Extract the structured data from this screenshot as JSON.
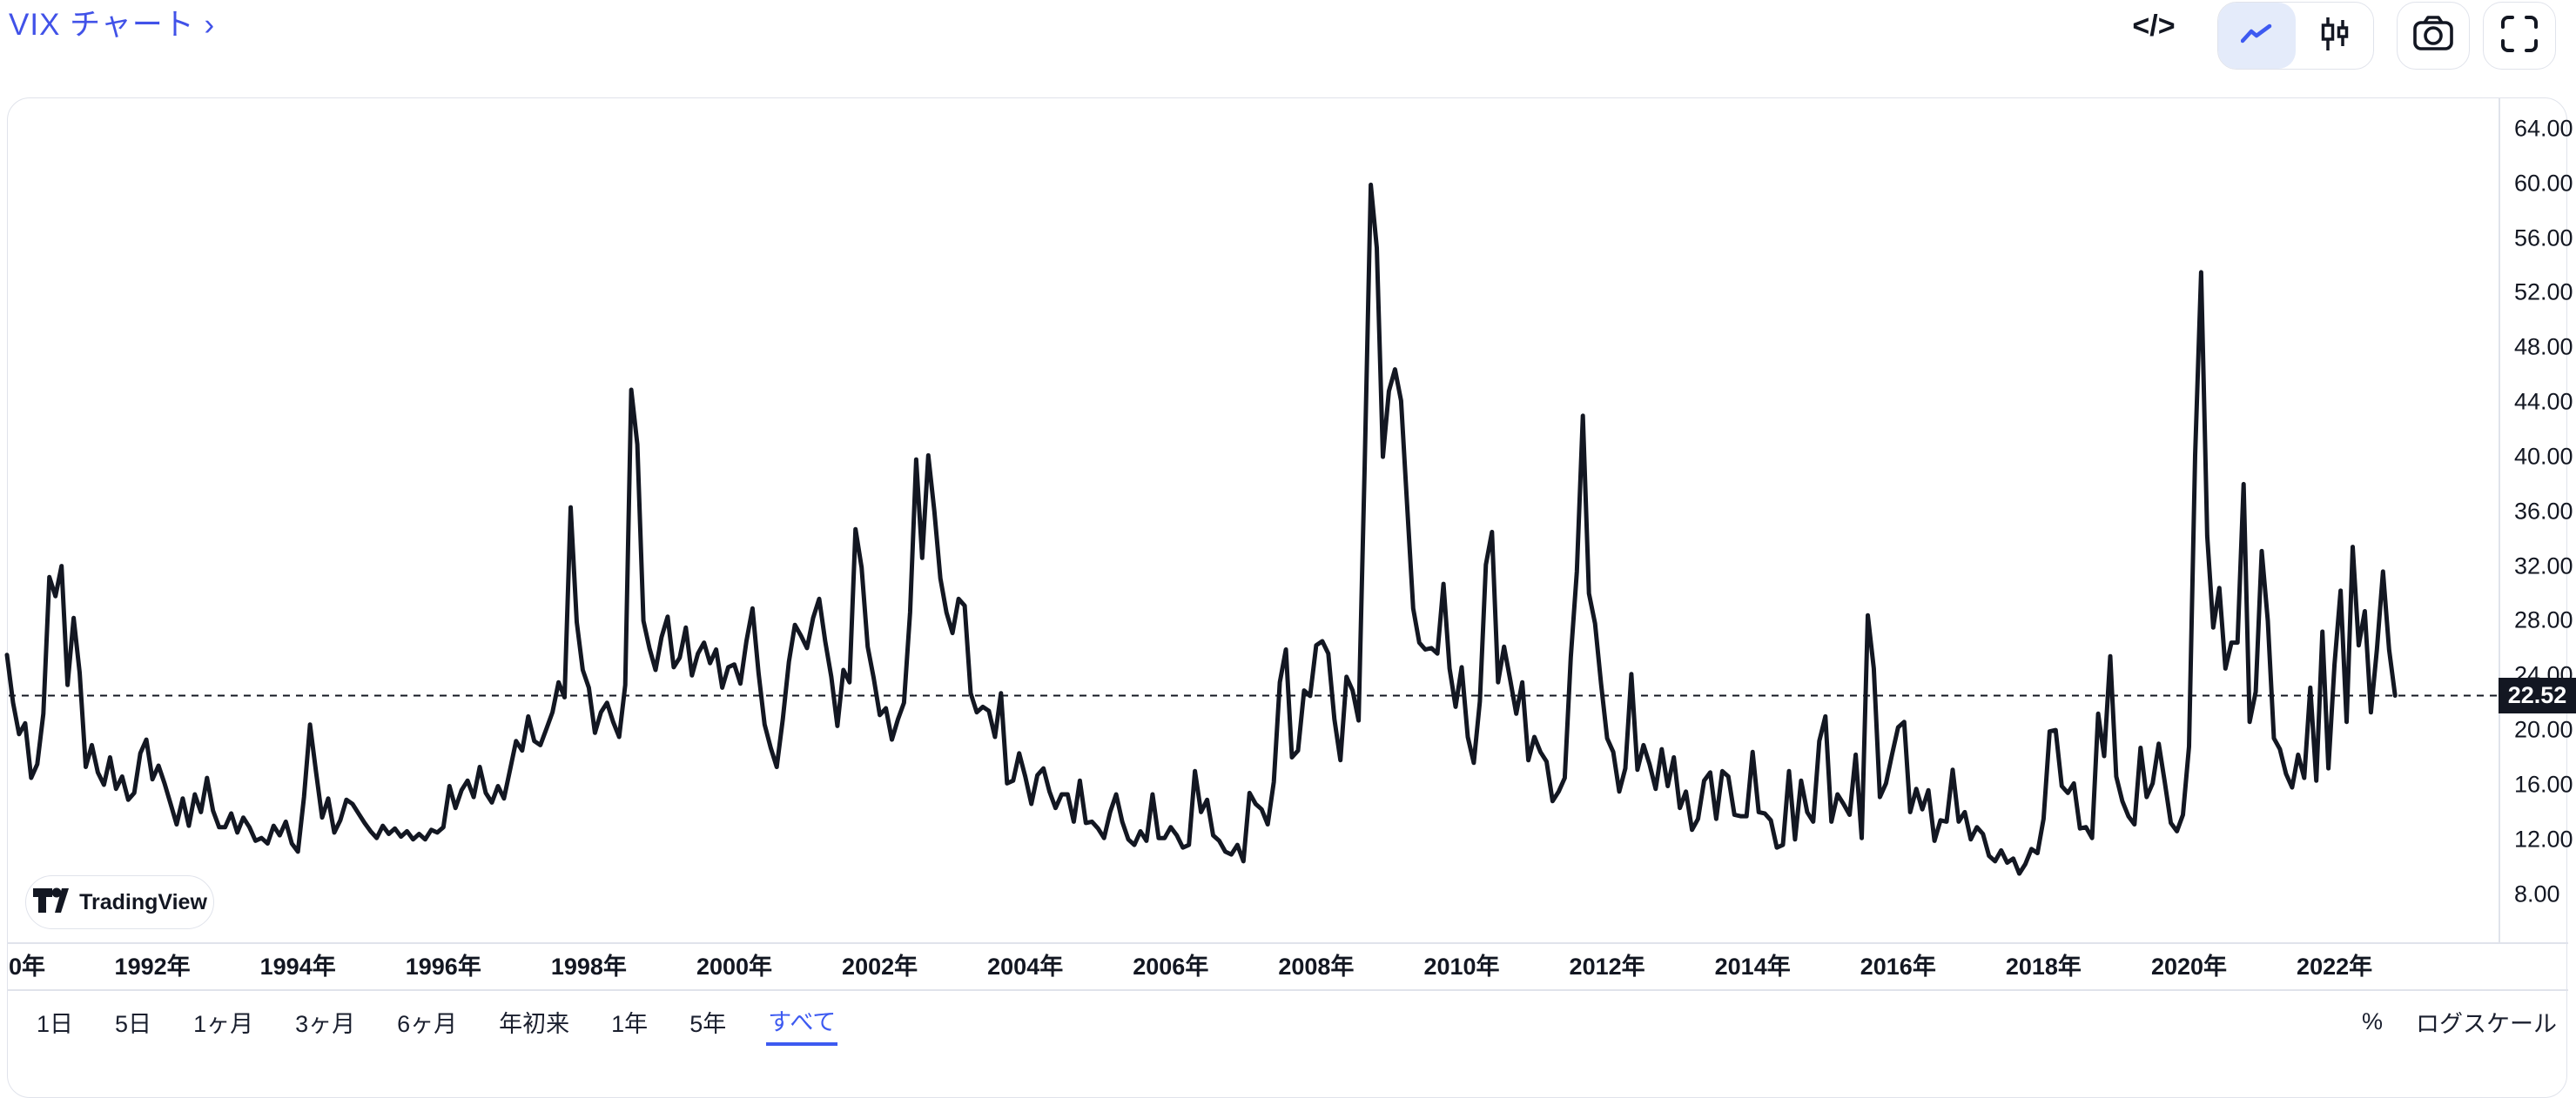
{
  "header": {
    "title": "VIX チャート ›"
  },
  "top_toolbar": {
    "embed_glyph": "</>",
    "active_chart_type": "line",
    "icons": [
      "embed-code-icon",
      "line-chart-icon",
      "candlestick-icon",
      "camera-icon",
      "fullscreen-icon"
    ]
  },
  "chart_data": {
    "type": "line",
    "title": "VIX チャート",
    "series_name": "VIX",
    "x_interval": "monthly",
    "x_start_year": 1990,
    "x_range": [
      1990,
      2022.92
    ],
    "ylim": [
      4.5,
      66.2
    ],
    "grid": false,
    "legend": "none",
    "line_color": "#131722",
    "last_price": 22.52,
    "last_price_label": "22.52",
    "y_ticks": [
      {
        "value": 64,
        "label": "64.00"
      },
      {
        "value": 60,
        "label": "60.00"
      },
      {
        "value": 56,
        "label": "56.00"
      },
      {
        "value": 52,
        "label": "52.00"
      },
      {
        "value": 48,
        "label": "48.00"
      },
      {
        "value": 44,
        "label": "44.00"
      },
      {
        "value": 40,
        "label": "40.00"
      },
      {
        "value": 36,
        "label": "36.00"
      },
      {
        "value": 32,
        "label": "32.00"
      },
      {
        "value": 28,
        "label": "28.00"
      },
      {
        "value": 24,
        "label": "24.00"
      },
      {
        "value": 20,
        "label": "20.00"
      },
      {
        "value": 16,
        "label": "16.00"
      },
      {
        "value": 12,
        "label": "12.00"
      },
      {
        "value": 8,
        "label": "8.00"
      }
    ],
    "x_ticks": [
      {
        "year": 1990,
        "label": "0年",
        "clipped": true
      },
      {
        "year": 1992,
        "label": "1992年"
      },
      {
        "year": 1994,
        "label": "1994年"
      },
      {
        "year": 1996,
        "label": "1996年"
      },
      {
        "year": 1998,
        "label": "1998年"
      },
      {
        "year": 2000,
        "label": "2000年"
      },
      {
        "year": 2002,
        "label": "2002年"
      },
      {
        "year": 2004,
        "label": "2004年"
      },
      {
        "year": 2006,
        "label": "2006年"
      },
      {
        "year": 2008,
        "label": "2008年"
      },
      {
        "year": 2010,
        "label": "2010年"
      },
      {
        "year": 2012,
        "label": "2012年"
      },
      {
        "year": 2014,
        "label": "2014年"
      },
      {
        "year": 2016,
        "label": "2016年"
      },
      {
        "year": 2018,
        "label": "2018年"
      },
      {
        "year": 2020,
        "label": "2020年"
      },
      {
        "year": 2022,
        "label": "2022年"
      }
    ],
    "values": [
      25.5,
      22.0,
      19.7,
      20.5,
      16.5,
      17.5,
      21.2,
      31.2,
      29.8,
      32.0,
      23.3,
      28.2,
      24.2,
      17.3,
      18.9,
      16.9,
      16.0,
      18.0,
      15.7,
      16.6,
      14.9,
      15.4,
      18.3,
      19.3,
      16.4,
      17.4,
      16.1,
      14.6,
      13.1,
      15.0,
      13.0,
      15.3,
      14.0,
      16.5,
      14.1,
      12.9,
      12.9,
      13.9,
      12.5,
      13.6,
      12.9,
      11.9,
      12.1,
      11.7,
      13.0,
      12.3,
      13.3,
      11.7,
      11.1,
      15.1,
      20.4,
      16.9,
      13.6,
      15.0,
      12.5,
      13.4,
      14.9,
      14.6,
      13.9,
      13.2,
      12.6,
      12.1,
      13.0,
      12.4,
      12.8,
      12.2,
      12.6,
      12.0,
      12.4,
      12.0,
      12.7,
      12.5,
      12.9,
      15.9,
      14.3,
      15.6,
      16.3,
      15.1,
      17.3,
      15.4,
      14.7,
      15.9,
      15.0,
      17.1,
      19.2,
      18.5,
      21.0,
      19.2,
      18.9,
      20.1,
      21.3,
      23.5,
      22.4,
      36.3,
      27.9,
      24.4,
      23.1,
      19.8,
      21.3,
      22.0,
      20.6,
      19.5,
      23.3,
      44.9,
      40.9,
      28.0,
      26.0,
      24.4,
      26.8,
      28.3,
      24.6,
      25.3,
      27.5,
      24.0,
      25.6,
      26.4,
      24.9,
      25.9,
      23.1,
      24.6,
      24.8,
      23.4,
      26.5,
      28.9,
      24.2,
      20.4,
      18.7,
      17.3,
      20.8,
      25.0,
      27.7,
      26.9,
      26.0,
      28.2,
      29.6,
      26.5,
      23.9,
      20.3,
      24.4,
      23.5,
      34.7,
      31.9,
      26.1,
      23.8,
      21.1,
      21.6,
      19.3,
      20.8,
      22.0,
      28.6,
      39.8,
      32.6,
      40.1,
      36.0,
      31.1,
      28.6,
      27.1,
      29.6,
      29.1,
      22.7,
      21.3,
      21.7,
      21.4,
      19.5,
      22.7,
      16.1,
      16.3,
      18.3,
      16.6,
      14.6,
      16.7,
      17.2,
      15.5,
      14.3,
      15.3,
      15.3,
      13.3,
      16.3,
      13.2,
      13.3,
      12.8,
      12.1,
      14.0,
      15.3,
      13.3,
      12.0,
      11.6,
      12.6,
      11.9,
      15.3,
      12.1,
      12.1,
      12.9,
      12.3,
      11.4,
      11.6,
      17.0,
      14.0,
      14.9,
      12.3,
      11.9,
      11.1,
      10.9,
      11.6,
      10.4,
      15.4,
      14.6,
      14.2,
      13.1,
      16.2,
      23.5,
      25.9,
      18.0,
      18.5,
      22.9,
      22.5,
      26.2,
      26.5,
      25.6,
      20.8,
      17.8,
      23.9,
      22.9,
      20.7,
      39.4,
      59.9,
      55.3,
      40.0,
      44.8,
      46.4,
      44.1,
      36.5,
      28.9,
      26.4,
      25.9,
      26.0,
      25.6,
      30.7,
      24.5,
      21.7,
      24.6,
      19.5,
      17.6,
      22.1,
      32.1,
      34.5,
      23.5,
      26.1,
      23.7,
      21.2,
      23.5,
      17.8,
      19.5,
      18.4,
      17.7,
      14.8,
      15.5,
      16.5,
      25.3,
      31.6,
      43.0,
      30.0,
      27.8,
      23.4,
      19.4,
      18.4,
      15.5,
      17.2,
      24.1,
      17.1,
      18.9,
      17.5,
      15.7,
      18.6,
      15.9,
      18.0,
      14.3,
      15.5,
      12.7,
      13.5,
      16.3,
      16.9,
      13.5,
      17.0,
      16.6,
      13.8,
      13.7,
      13.7,
      18.4,
      14.0,
      13.9,
      13.4,
      11.4,
      11.6,
      17.0,
      12.0,
      16.3,
      14.0,
      13.3,
      19.2,
      21.0,
      13.3,
      15.3,
      14.6,
      13.8,
      18.2,
      12.1,
      28.4,
      24.5,
      15.1,
      16.1,
      18.2,
      20.2,
      20.6,
      14.0,
      15.7,
      14.2,
      15.6,
      11.9,
      13.4,
      13.3,
      17.1,
      13.3,
      14.0,
      12.0,
      12.9,
      12.4,
      10.8,
      10.4,
      11.2,
      10.3,
      10.6,
      9.5,
      10.2,
      11.3,
      11.0,
      13.5,
      19.9,
      20.0,
      15.9,
      15.4,
      16.1,
      12.8,
      12.9,
      12.1,
      21.2,
      18.1,
      25.4,
      16.6,
      14.8,
      13.7,
      13.1,
      18.7,
      15.1,
      16.1,
      19.0,
      16.2,
      13.2,
      12.6,
      13.8,
      18.8,
      40.1,
      53.5,
      34.2,
      27.5,
      30.4,
      24.5,
      26.4,
      26.4,
      38.0,
      20.6,
      22.8,
      33.1,
      28.0,
      19.4,
      18.6,
      16.8,
      15.8,
      18.2,
      16.5,
      23.1,
      16.3,
      27.2,
      17.2,
      24.8,
      30.2,
      20.6,
      33.4,
      26.2,
      28.7,
      21.3,
      25.9,
      31.6,
      25.9,
      22.52
    ]
  },
  "attribution": {
    "label": "TradingView"
  },
  "range_toolbar": {
    "items": [
      "1日",
      "5日",
      "1ヶ月",
      "3ヶ月",
      "6ヶ月",
      "年初来",
      "1年",
      "5年",
      "すべて"
    ],
    "active": "すべて",
    "active_index": 8,
    "percent_label": "%",
    "log_label": "ログスケール"
  },
  "colors": {
    "title_blue": "#4152E8",
    "accent_blue": "#3D5AF1",
    "active_icon_bg": "#E4EBFA",
    "line": "#131722",
    "border": "#E0E3EB",
    "badge_bg": "#131722",
    "badge_text": "#FFFFFF"
  }
}
